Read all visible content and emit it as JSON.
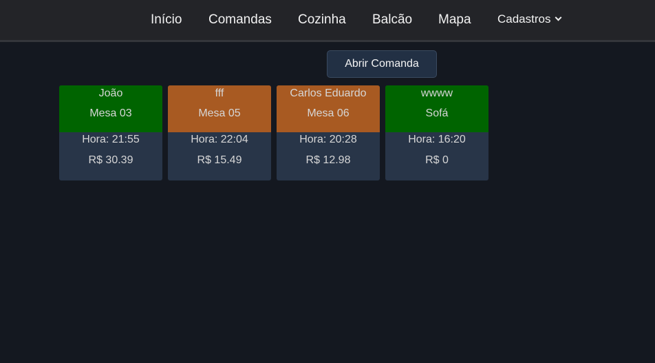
{
  "nav": {
    "items": [
      "Início",
      "Comandas",
      "Cozinha",
      "Balcão",
      "Mapa"
    ],
    "dropdown": "Cadastros"
  },
  "open_button": "Abrir Comanda",
  "colors": {
    "occupied_green": "#006400",
    "pending_orange": "#a85a22"
  },
  "comandas": [
    {
      "name": "João",
      "table": "Mesa 03",
      "time": "Hora: 21:55",
      "total": "R$ 30.39",
      "color": "#006400"
    },
    {
      "name": "fff",
      "table": "Mesa 05",
      "time": "Hora: 22:04",
      "total": "R$ 15.49",
      "color": "#a85a22"
    },
    {
      "name": "Carlos Eduardo",
      "table": "Mesa 06",
      "time": "Hora: 20:28",
      "total": "R$ 12.98",
      "color": "#a85a22"
    },
    {
      "name": "wwww",
      "table": "Sofá",
      "time": "Hora: 16:20",
      "total": "R$ 0",
      "color": "#006400"
    }
  ]
}
